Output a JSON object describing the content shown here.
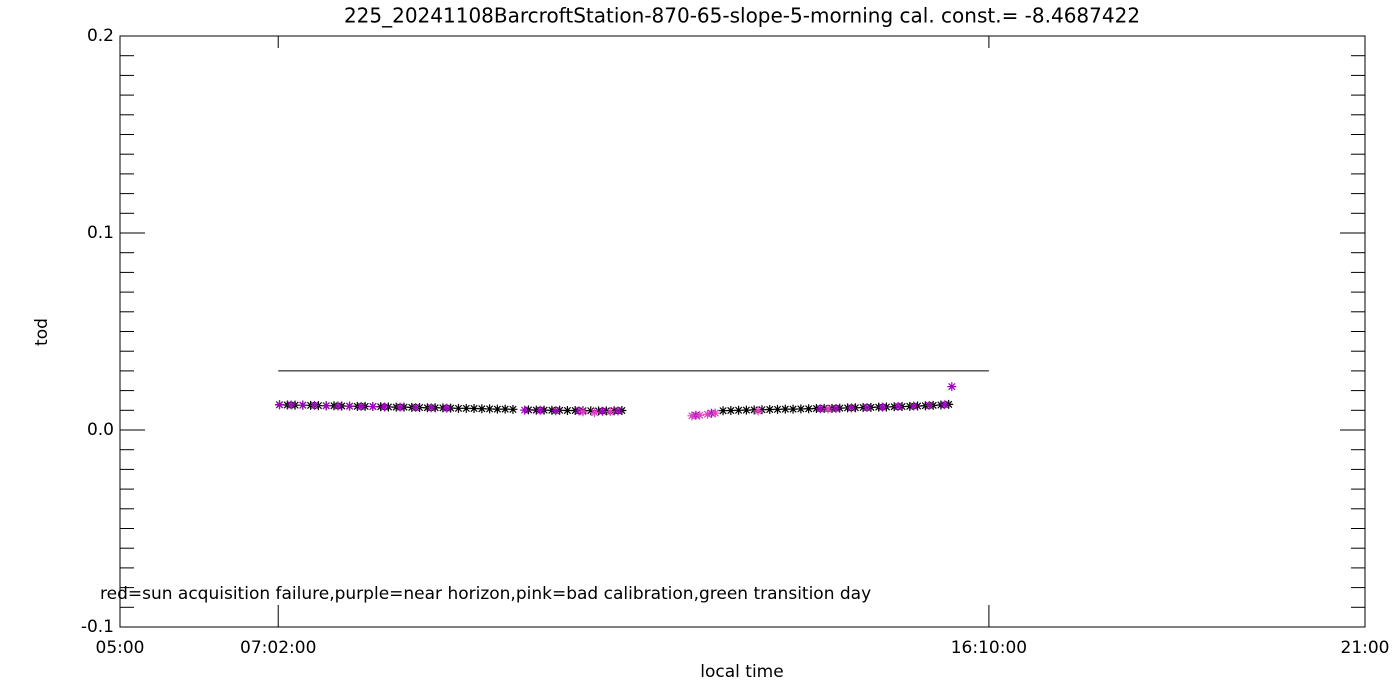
{
  "chart_data": {
    "type": "scatter",
    "title": "225_20241108BarcroftStation-870-65-slope-5-morning cal. const.= -8.4687422",
    "x_label": "local time",
    "y_label": "tod",
    "annotation": "red=sun acquisition failure,purple=near horizon,pink=bad calibration,green transition day",
    "xlim": [
      5,
      21
    ],
    "ylim": [
      -0.1,
      0.2
    ],
    "xticks": [
      {
        "value": 5,
        "label": "05:00"
      },
      {
        "value": 7.0333,
        "label": "07:02:00"
      },
      {
        "value": 16.1667,
        "label": "16:10:00"
      },
      {
        "value": 21,
        "label": "21:00"
      }
    ],
    "yticks": [
      -0.1,
      {
        "value": 0,
        "label": "0.0"
      },
      0.1,
      0.2
    ],
    "yminor": 10,
    "reference_line": {
      "x": [
        7.0333,
        16.1667
      ],
      "y": 0.03,
      "color": "#000000"
    },
    "series": [
      {
        "color": "#000000",
        "x": [
          7.05,
          7.15,
          7.25,
          7.35,
          7.45,
          7.55,
          7.65,
          7.75,
          7.85,
          7.95,
          8.05,
          8.15,
          8.25,
          8.35,
          8.45,
          8.55,
          8.65,
          8.75,
          8.85,
          8.95,
          9.05,
          9.15,
          9.25,
          9.35,
          9.45,
          9.55,
          9.65,
          9.75,
          9.85,
          9.95,
          10.05,
          10.25,
          10.35,
          10.45,
          10.55,
          10.65,
          10.75,
          10.85,
          10.95,
          11.05,
          11.15,
          11.25,
          11.35,
          11.45,
          12.75,
          12.85,
          12.95,
          13.05,
          13.15,
          13.25,
          13.35,
          13.45,
          13.55,
          13.65,
          13.75,
          13.85,
          13.95,
          14.05,
          14.15,
          14.25,
          14.35,
          14.45,
          14.55,
          14.65,
          14.75,
          14.85,
          14.95,
          15.05,
          15.15,
          15.25,
          15.35,
          15.45,
          15.55,
          15.65
        ],
        "values": [
          0.0128,
          0.0127,
          0.0126,
          0.0126,
          0.0125,
          0.0124,
          0.0123,
          0.0123,
          0.0122,
          0.0121,
          0.012,
          0.012,
          0.0119,
          0.0118,
          0.0117,
          0.0116,
          0.0116,
          0.0115,
          0.0114,
          0.0113,
          0.0113,
          0.0112,
          0.0111,
          0.011,
          0.011,
          0.0109,
          0.0108,
          0.0107,
          0.0106,
          0.0106,
          0.0105,
          0.0102,
          0.0101,
          0.0101,
          0.01,
          0.01,
          0.0099,
          0.0099,
          0.0098,
          0.0098,
          0.0097,
          0.0097,
          0.0098,
          0.0099,
          0.0098,
          0.0099,
          0.01,
          0.0101,
          0.0102,
          0.0103,
          0.0104,
          0.0105,
          0.0106,
          0.0106,
          0.0107,
          0.0108,
          0.0109,
          0.011,
          0.011,
          0.0111,
          0.0112,
          0.0113,
          0.0114,
          0.0115,
          0.0116,
          0.0117,
          0.0118,
          0.0119,
          0.012,
          0.0122,
          0.0123,
          0.0125,
          0.0127,
          0.013
        ]
      },
      {
        "color": "#a000c0",
        "x": [
          7.05,
          7.2,
          7.35,
          7.5,
          7.65,
          7.8,
          7.95,
          8.1,
          8.25,
          8.4,
          8.6,
          8.8,
          9.0,
          9.2,
          10.2,
          10.4,
          10.6,
          10.9,
          11.2,
          11.4,
          12.4,
          12.6,
          14.0,
          14.2,
          14.4,
          14.6,
          14.8,
          15.0,
          15.2,
          15.4,
          15.6,
          15.69
        ],
        "values": [
          0.0128,
          0.0127,
          0.0126,
          0.0125,
          0.0123,
          0.0122,
          0.0121,
          0.012,
          0.0119,
          0.0117,
          0.0116,
          0.0114,
          0.0113,
          0.0111,
          0.0101,
          0.01,
          0.0098,
          0.0097,
          0.0095,
          0.0097,
          0.0075,
          0.0085,
          0.0108,
          0.011,
          0.0112,
          0.0114,
          0.0116,
          0.0119,
          0.0122,
          0.0125,
          0.0128,
          0.022
        ]
      },
      {
        "color": "#e040c0",
        "x": [
          10.95,
          11.1,
          11.3,
          12.35,
          12.45,
          12.55,
          12.65,
          13.2,
          14.1
        ],
        "values": [
          0.0092,
          0.0088,
          0.0093,
          0.0072,
          0.0075,
          0.008,
          0.0086,
          0.0097,
          0.0107
        ]
      }
    ]
  }
}
